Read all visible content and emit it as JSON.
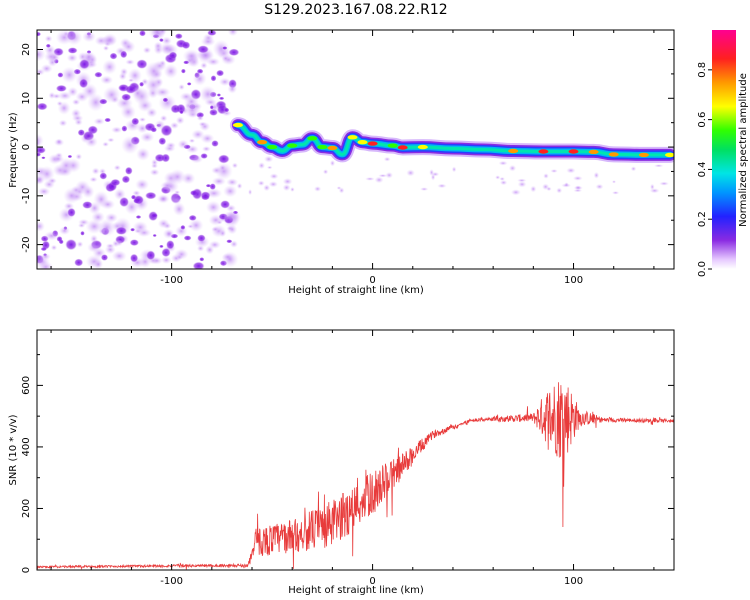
{
  "title": "S129.2023.167.08.22.R12",
  "chart_data": [
    {
      "type": "heatmap",
      "xlabel": "Height of straight line (km)",
      "ylabel": "Frequency (Hz)",
      "xlim": [
        -167,
        150
      ],
      "ylim": [
        -25,
        24
      ],
      "xticks": [
        -100,
        0,
        100
      ],
      "yticks": [
        -20,
        -10,
        0,
        10,
        20
      ],
      "colorbar": {
        "label": "Normalized spectral amplitude",
        "ticks": [
          0.0,
          0.2,
          0.4,
          0.6,
          0.8
        ],
        "range": [
          0.0,
          0.96
        ]
      },
      "noise_region_x": [
        -167,
        -68
      ],
      "ridge": [
        {
          "x": -67,
          "f": 4.5,
          "a": 0.6
        },
        {
          "x": -60,
          "f": 2.5,
          "a": 0.45
        },
        {
          "x": -55,
          "f": 1.0,
          "a": 0.7
        },
        {
          "x": -50,
          "f": 0.0,
          "a": 0.5
        },
        {
          "x": -45,
          "f": -0.8,
          "a": 0.4
        },
        {
          "x": -40,
          "f": 0.3,
          "a": 0.55
        },
        {
          "x": -35,
          "f": 0.5,
          "a": 0.45
        },
        {
          "x": -30,
          "f": 1.8,
          "a": 0.55
        },
        {
          "x": -25,
          "f": 0.0,
          "a": 0.5
        },
        {
          "x": -20,
          "f": -0.2,
          "a": 0.75
        },
        {
          "x": -15,
          "f": -1.5,
          "a": 0.45
        },
        {
          "x": -10,
          "f": 2.0,
          "a": 0.6
        },
        {
          "x": -5,
          "f": 1.0,
          "a": 0.6
        },
        {
          "x": 0,
          "f": 0.7,
          "a": 0.8
        },
        {
          "x": 10,
          "f": 0.3,
          "a": 0.55
        },
        {
          "x": 15,
          "f": -0.1,
          "a": 0.85
        },
        {
          "x": 25,
          "f": 0.0,
          "a": 0.6
        },
        {
          "x": 40,
          "f": -0.3,
          "a": 0.45
        },
        {
          "x": 55,
          "f": -0.5,
          "a": 0.4
        },
        {
          "x": 70,
          "f": -0.8,
          "a": 0.7
        },
        {
          "x": 85,
          "f": -0.9,
          "a": 0.8
        },
        {
          "x": 100,
          "f": -0.9,
          "a": 0.85
        },
        {
          "x": 110,
          "f": -1.0,
          "a": 0.7
        },
        {
          "x": 120,
          "f": -1.5,
          "a": 0.75
        },
        {
          "x": 135,
          "f": -1.6,
          "a": 0.75
        },
        {
          "x": 148,
          "f": -1.6,
          "a": 0.6
        }
      ]
    },
    {
      "type": "line",
      "xlabel": "Height of straight line (km)",
      "ylabel": "SNR (10 * v/v)",
      "xlim": [
        -167,
        150
      ],
      "ylim": [
        0,
        780
      ],
      "xticks": [
        -100,
        0,
        100
      ],
      "yticks": [
        0,
        200,
        400,
        600
      ],
      "color": "#e83b3b",
      "envelope": [
        {
          "x": -167,
          "base": 10,
          "amp": 5
        },
        {
          "x": -62,
          "base": 15,
          "amp": 8
        },
        {
          "x": -58,
          "base": 90,
          "amp": 80
        },
        {
          "x": -40,
          "base": 110,
          "amp": 90
        },
        {
          "x": -20,
          "base": 150,
          "amp": 130
        },
        {
          "x": 0,
          "base": 250,
          "amp": 120
        },
        {
          "x": 15,
          "base": 340,
          "amp": 70
        },
        {
          "x": 30,
          "base": 440,
          "amp": 20
        },
        {
          "x": 50,
          "base": 488,
          "amp": 8
        },
        {
          "x": 80,
          "base": 495,
          "amp": 25
        },
        {
          "x": 88,
          "base": 500,
          "amp": 180
        },
        {
          "x": 95,
          "base": 500,
          "amp": 260
        },
        {
          "x": 103,
          "base": 495,
          "amp": 50
        },
        {
          "x": 115,
          "base": 488,
          "amp": 12
        },
        {
          "x": 150,
          "base": 485,
          "amp": 8
        }
      ]
    }
  ]
}
